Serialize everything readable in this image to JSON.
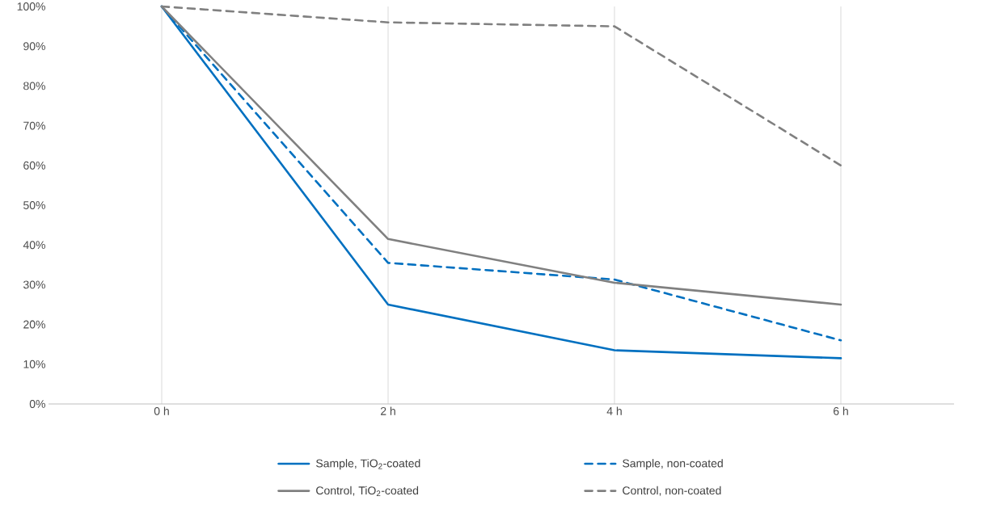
{
  "chart_data": {
    "type": "line",
    "categories": [
      "0 h",
      "2 h",
      "4 h",
      "6 h"
    ],
    "series": [
      {
        "name": "Sample, TiO$_{2}$-coated",
        "color": "#0070c0",
        "line_style": "solid",
        "values": [
          100,
          25,
          13.5,
          11.5
        ]
      },
      {
        "name": "Sample, non-coated",
        "color": "#0070c0",
        "line_style": "dashed",
        "values": [
          100,
          35.5,
          31.3,
          16
        ]
      },
      {
        "name": "Control, TiO$_{2}$-coated",
        "color": "#808080",
        "line_style": "solid",
        "values": [
          100,
          41.5,
          30.5,
          25
        ]
      },
      {
        "name": "Control, non-coated",
        "color": "#808080",
        "line_style": "dashed",
        "values": [
          100,
          96,
          95,
          60
        ]
      }
    ],
    "ylim": [
      0,
      100
    ],
    "yticks": [
      {
        "value": 0,
        "label": "0%"
      },
      {
        "value": 10,
        "label": "10%"
      },
      {
        "value": 20,
        "label": "20%"
      },
      {
        "value": 30,
        "label": "30%"
      },
      {
        "value": 40,
        "label": "40%"
      },
      {
        "value": 50,
        "label": "50%"
      },
      {
        "value": 60,
        "label": "60%"
      },
      {
        "value": 70,
        "label": "70%"
      },
      {
        "value": 80,
        "label": "80%"
      },
      {
        "value": 90,
        "label": "90%"
      },
      {
        "value": 100,
        "label": "100%"
      }
    ],
    "grid": "x",
    "legend": "bottom",
    "marker": "none"
  }
}
